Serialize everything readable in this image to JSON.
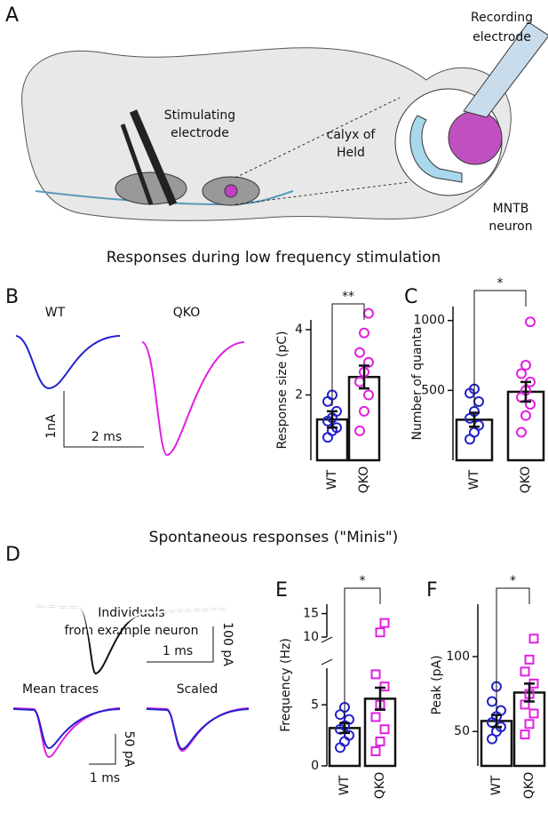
{
  "figure": {
    "panels": [
      "A",
      "B",
      "C",
      "D",
      "E",
      "F"
    ],
    "headings": [
      "Responses during low frequency stimulation",
      "Spontaneous responses (\"Minis\")"
    ],
    "diagram_labels": [
      "Recording",
      "electrode",
      "calyx of",
      "Held",
      "Stimulating",
      "electrode",
      "MNTB",
      "neuron"
    ],
    "trace_labels": [
      "WT",
      "QKO",
      "Individuals",
      "from example neuron",
      "Mean traces",
      "Scaled"
    ],
    "scale_labels": [
      "1nA",
      "2 ms",
      "100 pA",
      "1 ms",
      "50 pA",
      "1 ms"
    ]
  },
  "chart_data": [
    {
      "type": "bar",
      "ylabel": "Response size (pC)",
      "categories": [
        "WT",
        "QKO"
      ],
      "values": [
        1.25,
        2.55
      ],
      "errors": [
        0.25,
        0.35
      ],
      "points": [
        [
          0.7,
          0.9,
          1.0,
          1.2,
          1.3,
          1.5,
          1.8,
          2.0
        ],
        [
          0.9,
          1.5,
          2.0,
          2.4,
          2.7,
          3.0,
          3.3,
          3.9,
          4.5
        ]
      ],
      "colors": [
        "#2222cc",
        "#e020e0"
      ],
      "markers": [
        "circle",
        "circle"
      ],
      "significance": "**",
      "ylim": [
        0,
        4.3
      ],
      "yticks": [
        2,
        4
      ]
    },
    {
      "type": "bar",
      "ylabel": "Number of quanta",
      "categories": [
        "WT",
        "QKO"
      ],
      "values": [
        290,
        490
      ],
      "errors": [
        50,
        70
      ],
      "points": [
        [
          150,
          200,
          250,
          300,
          350,
          420,
          480,
          510
        ],
        [
          200,
          320,
          400,
          450,
          500,
          560,
          620,
          680,
          990
        ]
      ],
      "colors": [
        "#2222cc",
        "#e020e0"
      ],
      "markers": [
        "circle",
        "circle"
      ],
      "significance": "*",
      "ylim": [
        0,
        1100
      ],
      "yticks": [
        500,
        1000
      ]
    },
    {
      "type": "bar",
      "ylabel": "Frequency (Hz)",
      "categories": [
        "WT",
        "QKO"
      ],
      "values": [
        3.1,
        5.5
      ],
      "errors": [
        0.4,
        0.9
      ],
      "points": [
        [
          1.5,
          2.0,
          2.5,
          3.0,
          3.3,
          3.8,
          4.2,
          4.8
        ],
        [
          1.2,
          2.0,
          3.0,
          4.0,
          5.0,
          6.5,
          7.5,
          11,
          13
        ]
      ],
      "colors": [
        "#2222cc",
        "#e020e0"
      ],
      "markers": [
        "circle",
        "square"
      ],
      "significance": "*",
      "ylim": [
        0,
        17
      ],
      "ybreak": [
        8,
        10
      ],
      "yticks": [
        0,
        5,
        10,
        15
      ]
    },
    {
      "type": "bar",
      "ylabel": "Peak (pA)",
      "categories": [
        "WT",
        "QKO"
      ],
      "values": [
        57,
        76
      ],
      "errors": [
        4,
        6
      ],
      "points": [
        [
          45,
          50,
          53,
          56,
          60,
          64,
          70,
          80
        ],
        [
          48,
          55,
          62,
          68,
          75,
          82,
          90,
          98,
          112
        ]
      ],
      "colors": [
        "#2222cc",
        "#e020e0"
      ],
      "markers": [
        "circle",
        "square"
      ],
      "significance": "*",
      "ylim": [
        27,
        135
      ],
      "yticks": [
        50,
        100
      ]
    }
  ]
}
